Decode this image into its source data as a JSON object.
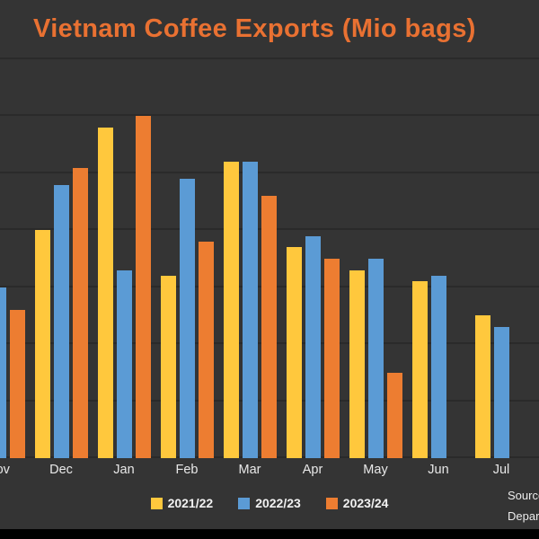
{
  "page": {
    "background": "#343434",
    "bottom_bar_color": "#000000"
  },
  "title": "Vietnam Coffee Exports (Mio bags)",
  "title_color": "#E97132",
  "source_note": {
    "line1": "Source",
    "line2": "Depart"
  },
  "legend": [
    {
      "label": "2021/22",
      "color": "#FFC83D"
    },
    {
      "label": "2022/23",
      "color": "#5B9BD5"
    },
    {
      "label": "2023/24",
      "color": "#ED7D31"
    }
  ],
  "chart_data": {
    "type": "bar",
    "title": "Vietnam Coffee Exports (Mio bags)",
    "categories": [
      "Nov",
      "Dec",
      "Jan",
      "Feb",
      "Mar",
      "Apr",
      "May",
      "Jun",
      "Jul"
    ],
    "series": [
      {
        "name": "2021/22",
        "color": "#FFC83D",
        "values": [
          null,
          2.0,
          2.9,
          1.6,
          2.6,
          1.85,
          1.65,
          1.55,
          1.25
        ]
      },
      {
        "name": "2022/23",
        "color": "#5B9BD5",
        "values": [
          1.5,
          2.4,
          1.65,
          2.45,
          2.6,
          1.95,
          1.75,
          1.6,
          1.15
        ]
      },
      {
        "name": "2023/24",
        "color": "#ED7D31",
        "values": [
          1.3,
          2.55,
          3.0,
          1.9,
          2.3,
          1.75,
          0.75,
          null,
          null
        ]
      }
    ],
    "ylim": [
      0,
      3.5
    ],
    "grid_step": 0.5,
    "grid": true,
    "y_axis_labels_visible": false,
    "legend_position": "bottom",
    "cropped_left": true
  }
}
